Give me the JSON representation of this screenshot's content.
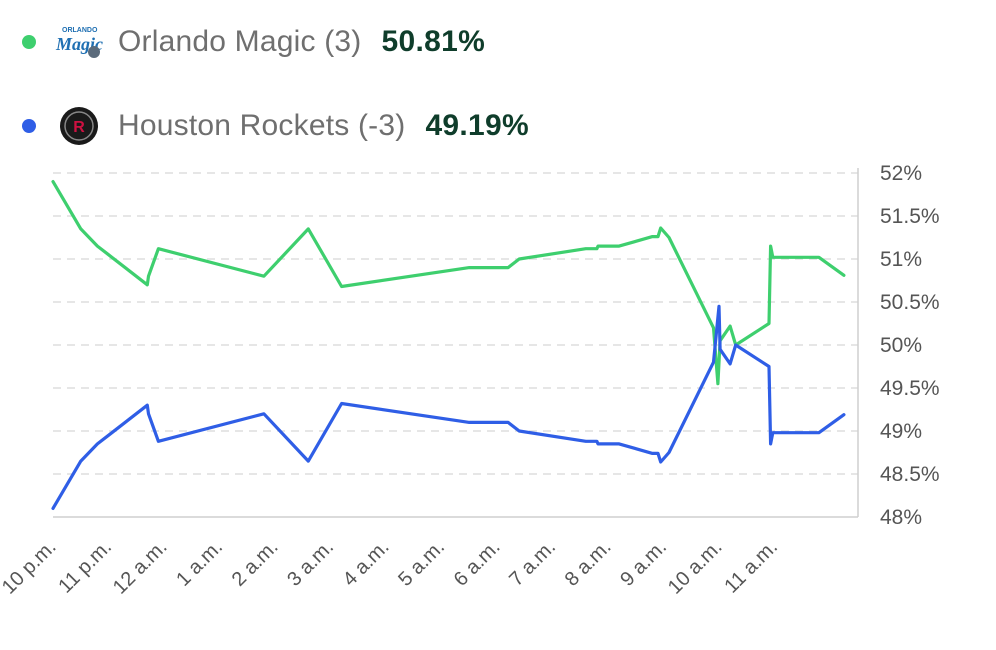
{
  "legend": [
    {
      "team": "Orlando Magic (3)",
      "percent": "50.81%",
      "color": "#3ecf6e",
      "icon": "orlando-magic-logo-icon"
    },
    {
      "team": "Houston Rockets (-3)",
      "percent": "49.19%",
      "color": "#2f5ee6",
      "icon": "houston-rockets-logo-icon"
    }
  ],
  "chart_data": {
    "type": "line",
    "y_ticks": [
      "52%",
      "51.5%",
      "51%",
      "50.5%",
      "50%",
      "49.5%",
      "49%",
      "48.5%",
      "48%"
    ],
    "x_ticks": [
      "10 p.m.",
      "11 p.m.",
      "12 a.m.",
      "1 a.m.",
      "2 a.m.",
      "3 a.m.",
      "4 a.m.",
      "5 a.m.",
      "6 a.m.",
      "7 a.m.",
      "8 a.m.",
      "9 a.m.",
      "10 a.m.",
      "11 a.m."
    ],
    "ylim": [
      48,
      52
    ],
    "xlim": [
      0,
      14.5
    ],
    "grid": true,
    "series": [
      {
        "name": "Orlando Magic (3)",
        "color": "#3ecf6e",
        "points": [
          [
            0,
            51.9
          ],
          [
            0.5,
            51.35
          ],
          [
            0.8,
            51.15
          ],
          [
            1.0,
            51.05
          ],
          [
            1.7,
            50.7
          ],
          [
            1.72,
            50.8
          ],
          [
            1.9,
            51.12
          ],
          [
            3.8,
            50.8
          ],
          [
            4.6,
            51.35
          ],
          [
            5.2,
            50.68
          ],
          [
            7.5,
            50.9
          ],
          [
            8.2,
            50.9
          ],
          [
            8.4,
            51.0
          ],
          [
            9.6,
            51.12
          ],
          [
            9.8,
            51.12
          ],
          [
            9.82,
            51.15
          ],
          [
            10.2,
            51.15
          ],
          [
            10.8,
            51.26
          ],
          [
            10.9,
            51.26
          ],
          [
            10.95,
            51.36
          ],
          [
            11.1,
            51.25
          ],
          [
            11.9,
            50.2
          ],
          [
            11.98,
            49.55
          ],
          [
            12.02,
            50.05
          ],
          [
            12.2,
            50.22
          ],
          [
            12.3,
            50.0
          ],
          [
            12.9,
            50.25
          ],
          [
            12.93,
            51.15
          ],
          [
            12.97,
            51.02
          ],
          [
            13.8,
            51.02
          ],
          [
            14.25,
            50.81
          ]
        ]
      },
      {
        "name": "Houston Rockets (-3)",
        "color": "#2f5ee6",
        "points": [
          [
            0,
            48.1
          ],
          [
            0.5,
            48.65
          ],
          [
            0.8,
            48.85
          ],
          [
            1.0,
            48.95
          ],
          [
            1.7,
            49.3
          ],
          [
            1.72,
            49.2
          ],
          [
            1.9,
            48.88
          ],
          [
            3.8,
            49.2
          ],
          [
            4.6,
            48.65
          ],
          [
            5.2,
            49.32
          ],
          [
            7.5,
            49.1
          ],
          [
            8.2,
            49.1
          ],
          [
            8.4,
            49.0
          ],
          [
            9.6,
            48.88
          ],
          [
            9.8,
            48.88
          ],
          [
            9.82,
            48.85
          ],
          [
            10.2,
            48.85
          ],
          [
            10.8,
            48.74
          ],
          [
            10.9,
            48.74
          ],
          [
            10.95,
            48.64
          ],
          [
            11.1,
            48.75
          ],
          [
            11.9,
            49.8
          ],
          [
            12.0,
            50.45
          ],
          [
            12.02,
            49.95
          ],
          [
            12.2,
            49.78
          ],
          [
            12.3,
            50.0
          ],
          [
            12.9,
            49.75
          ],
          [
            12.93,
            48.85
          ],
          [
            12.97,
            48.98
          ],
          [
            13.8,
            48.98
          ],
          [
            14.25,
            49.19
          ]
        ]
      }
    ]
  }
}
